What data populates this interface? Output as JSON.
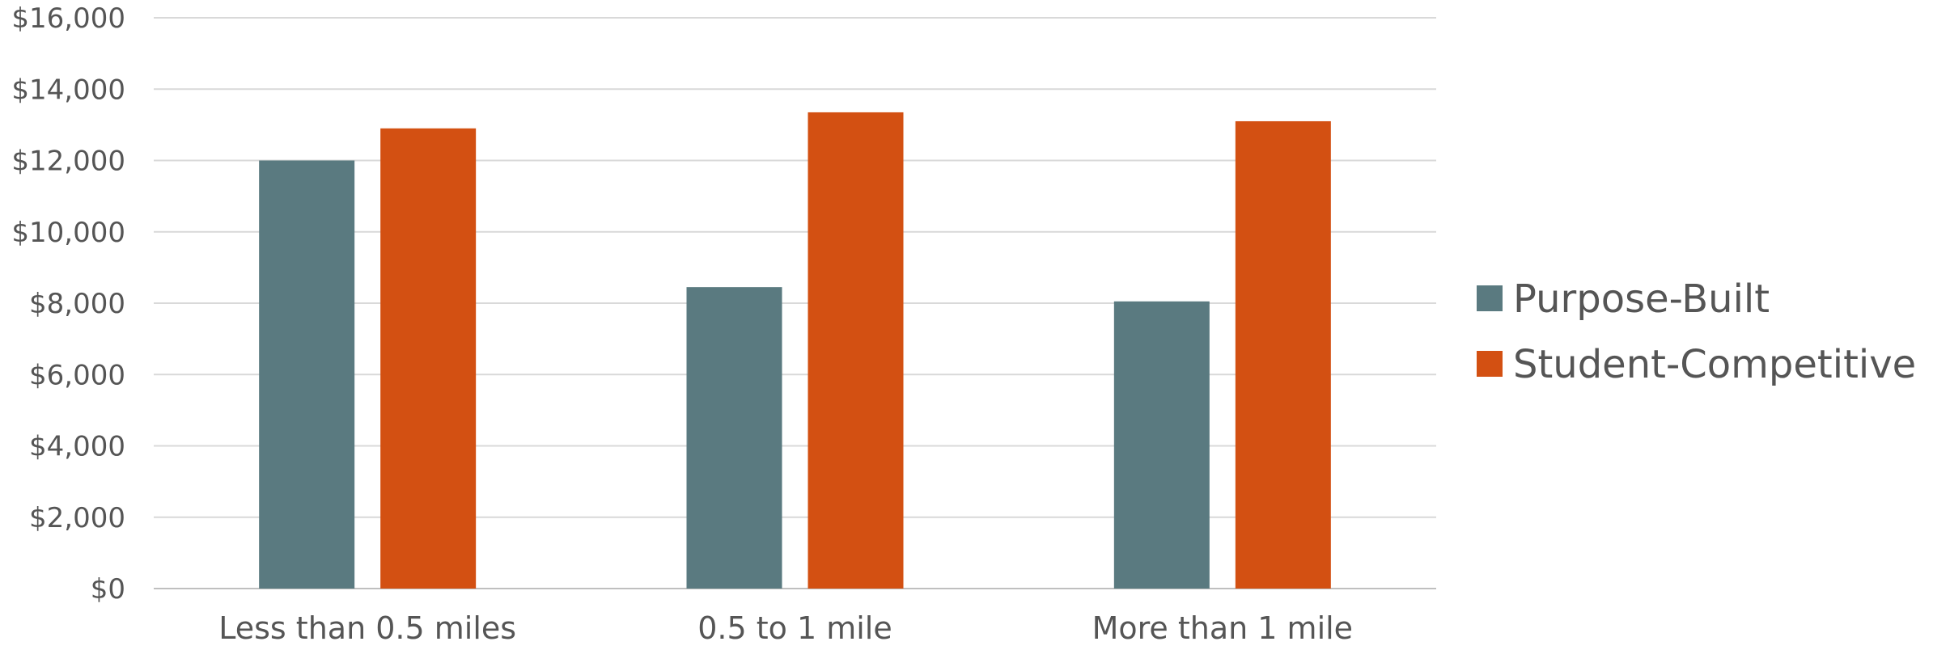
{
  "chart_data": {
    "type": "bar",
    "categories": [
      "Less than 0.5 miles",
      "0.5 to 1 mile",
      "More than 1 mile"
    ],
    "series": [
      {
        "name": "Purpose-Built",
        "color": "#5a7a80",
        "values": [
          12000,
          8450,
          8050
        ]
      },
      {
        "name": "Student-Competitive",
        "color": "#d35012",
        "values": [
          12900,
          13350,
          13100
        ]
      }
    ],
    "y_ticks": [
      "$0",
      "$2,000",
      "$4,000",
      "$6,000",
      "$8,000",
      "$10,000",
      "$12,000",
      "$14,000",
      "$16,000"
    ],
    "ylim": [
      0,
      16000
    ],
    "y_step": 2000,
    "grid": true,
    "legend_position": "right",
    "title": "",
    "xlabel": "",
    "ylabel": ""
  }
}
